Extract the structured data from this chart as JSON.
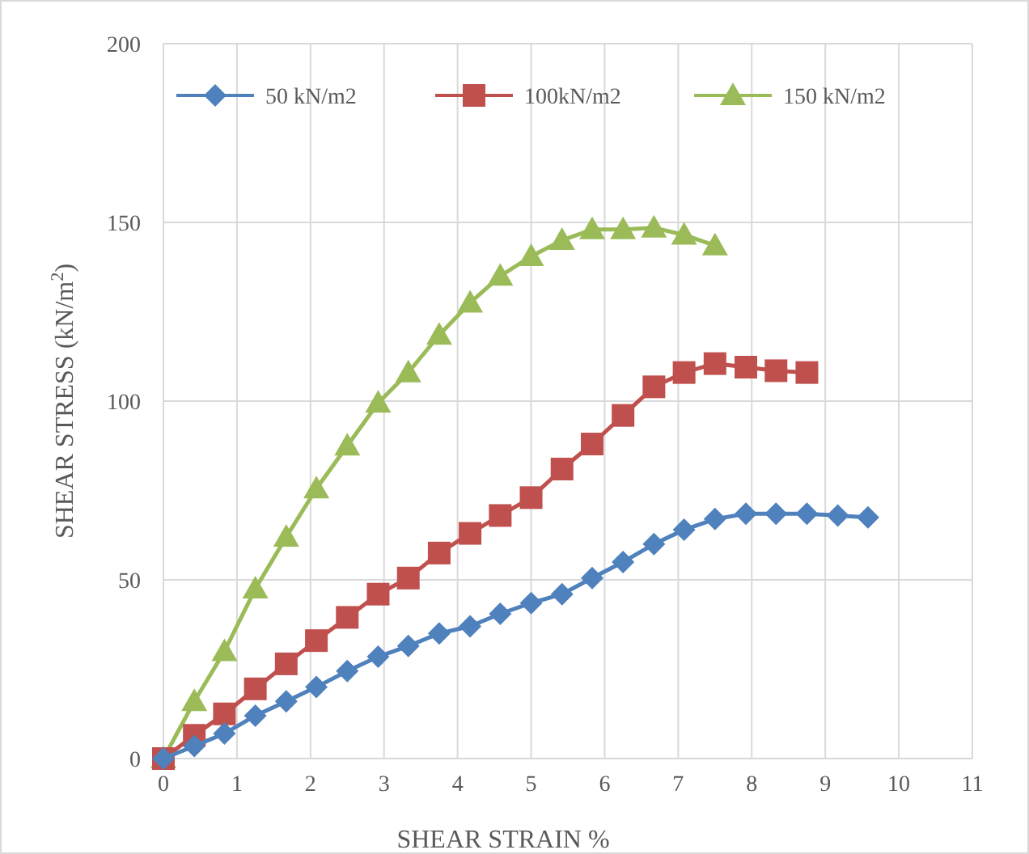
{
  "chart_data": {
    "type": "line",
    "xlabel": "SHEAR STRAIN %",
    "ylabel": "SHEAR STRESS (kN/m$^{2}$)",
    "x": [
      0,
      0.42,
      0.83,
      1.25,
      1.67,
      2.08,
      2.5,
      2.92,
      3.33,
      3.75,
      4.17,
      4.58,
      5,
      5.42,
      5.83,
      6.25,
      6.67,
      7.08,
      7.5,
      7.92,
      8.33,
      8.75,
      9.17,
      9.58
    ],
    "series": [
      {
        "name": "50 kN/m2",
        "color": "#4f81bd",
        "marker": "diamond",
        "values": [
          0,
          3.5,
          7,
          12,
          16,
          20,
          24.5,
          28.5,
          31.5,
          35,
          37,
          40.5,
          43.5,
          46,
          50.5,
          55,
          60,
          64,
          67,
          68.5,
          68.5,
          68.5,
          68,
          67.5
        ]
      },
      {
        "name": "100kN/m2",
        "color": "#c0504d",
        "marker": "square",
        "x": [
          0,
          0.42,
          0.83,
          1.25,
          1.67,
          2.08,
          2.5,
          2.92,
          3.33,
          3.75,
          4.17,
          4.58,
          5,
          5.42,
          5.83,
          6.25,
          6.67,
          7.08,
          7.5,
          7.92,
          8.33,
          8.75
        ],
        "values": [
          0,
          6.5,
          12.5,
          19.5,
          26.5,
          33,
          39.5,
          46,
          50.5,
          57.5,
          63,
          68,
          73,
          81,
          88,
          96,
          104,
          108,
          110.5,
          109.5,
          108.5,
          108
        ]
      },
      {
        "name": "150 kN/m2",
        "color": "#9bbb59",
        "marker": "triangle",
        "x": [
          0,
          0.42,
          0.83,
          1.25,
          1.67,
          2.08,
          2.5,
          2.92,
          3.33,
          3.75,
          4.17,
          4.58,
          5,
          5.42,
          5.83,
          6.25,
          6.67,
          7.08,
          7.5
        ],
        "values": [
          0,
          16,
          30,
          47.5,
          62,
          75.5,
          87.5,
          99.5,
          108,
          118.5,
          127.5,
          135,
          140.5,
          145,
          148,
          148,
          148.5,
          146.5,
          143.5
        ]
      }
    ],
    "xlim": [
      0,
      11
    ],
    "xticks": [
      0,
      1,
      2,
      3,
      4,
      5,
      6,
      7,
      8,
      9,
      10,
      11
    ],
    "ylim": [
      0,
      200
    ],
    "yticks": [
      0,
      50,
      100,
      150,
      200
    ],
    "grid": true,
    "legend": "top",
    "line_style": "solid"
  }
}
